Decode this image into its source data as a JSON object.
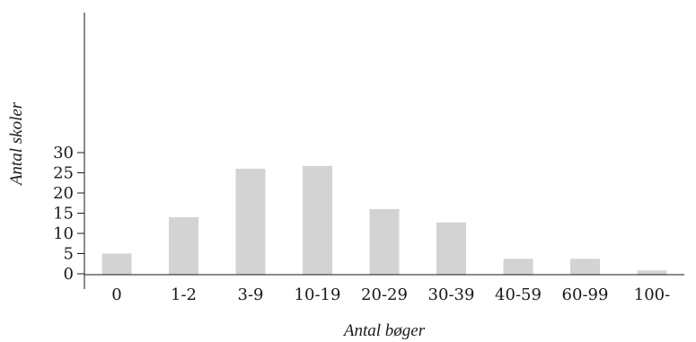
{
  "chart_data": {
    "type": "bar",
    "title": "",
    "xlabel": "Antal bøger",
    "ylabel": "Antal skoler",
    "categories": [
      "0",
      "1-2",
      "3-9",
      "10-19",
      "20-29",
      "30-39",
      "40-59",
      "60-99",
      "100-"
    ],
    "values": [
      5,
      14,
      26,
      26.7,
      16,
      12.7,
      3.7,
      3.7,
      0.8
    ],
    "ylim": [
      0,
      30
    ],
    "yticks": [
      0,
      5,
      10,
      15,
      20,
      25,
      30
    ],
    "grid": false,
    "legend": "none",
    "bar_color": "#d3d3d3",
    "axis_color": "#1a1a1a"
  }
}
